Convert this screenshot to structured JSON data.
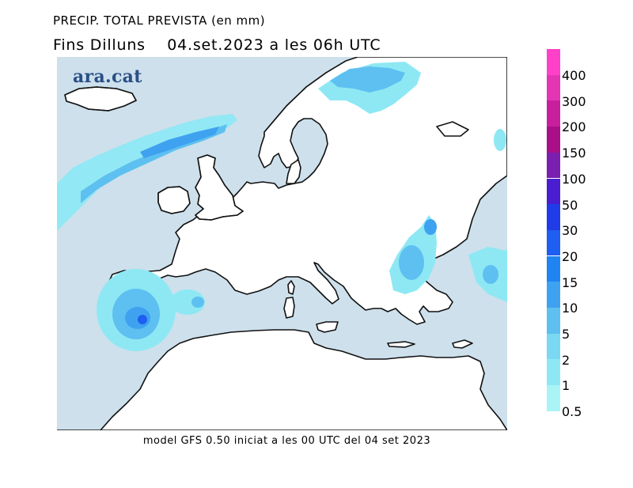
{
  "title_line1": "PRECIP. TOTAL PREVISTA (en mm)",
  "title_line2_left": "Fins Dilluns",
  "title_line2_right": "04.set.2023 a les 06h UTC",
  "logo": "ara.cat",
  "footer": "model GFS 0.50 iniciat a les 00 UTC del 04 set 2023",
  "map": {
    "sea_color": "#ffffff",
    "land_color": "#cde0ec",
    "coastline_color": "#111111"
  },
  "legend": {
    "unit": "mm",
    "labels": [
      "400",
      "300",
      "200",
      "150",
      "100",
      "50",
      "30",
      "20",
      "15",
      "10",
      "5",
      "2",
      "1",
      "0.5"
    ],
    "colors": [
      "#ff40c8",
      "#e435b4",
      "#c81f9e",
      "#a80f88",
      "#7a1fb0",
      "#4a1ed0",
      "#1f3ce8",
      "#1e5ef0",
      "#1f84f2",
      "#3ea2f0",
      "#5dc0f0",
      "#7ad8f2",
      "#8ee8f4",
      "#aaf4f6"
    ]
  }
}
